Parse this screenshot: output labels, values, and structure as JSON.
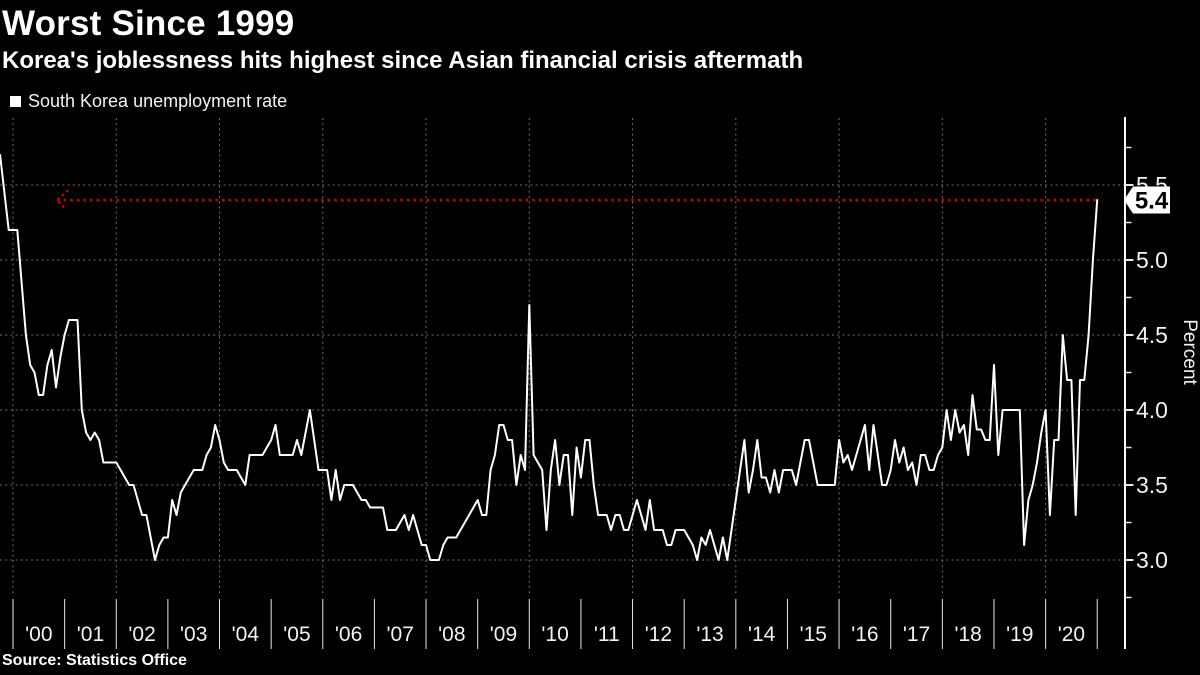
{
  "header": {
    "title": "Worst Since 1999",
    "subtitle": "Korea's joblessness hits highest since Asian financial crisis aftermath"
  },
  "legend": {
    "label": "South Korea unemployment rate",
    "marker_color": "#ffffff"
  },
  "source": "Source: Statistics Office",
  "colors": {
    "background": "#000000",
    "series_line": "#ffffff",
    "grid": "#6f6f6f",
    "axis": "#ffffff",
    "tick": "#e6e6e6",
    "text": "#f2f2f2",
    "reference_red": "#d40000",
    "callout_bg": "#ffffff",
    "callout_text": "#000000"
  },
  "chart_data": {
    "type": "line",
    "title": "Worst Since 1999",
    "subtitle": "Korea's joblessness hits highest since Asian financial crisis aftermath",
    "series_name": "South Korea unemployment rate",
    "ylabel": "Percent",
    "frequency": "monthly",
    "x_start": "1999-10",
    "x_end": "2021-01",
    "x_tick_labels": [
      "'00",
      "'01",
      "'02",
      "'03",
      "'04",
      "'05",
      "'06",
      "'07",
      "'08",
      "'09",
      "'10",
      "'11",
      "'12",
      "'13",
      "'14",
      "'15",
      "'16",
      "'17",
      "'18",
      "'19",
      "'20"
    ],
    "y_ticks_major": [
      5.5,
      5.0,
      4.5,
      4.0,
      3.5,
      3.0
    ],
    "y_ticks_minor": [
      5.75,
      5.25,
      4.75,
      4.25,
      3.75,
      3.25,
      2.75
    ],
    "ylim": [
      2.75,
      5.95
    ],
    "grid": "dashed horizontal at major y ticks, dashed vertical at even years, legend top-left",
    "reference_line": {
      "value": 5.4,
      "label": "5.4",
      "style": "dotted",
      "color": "#d40000",
      "arrow": "left-chevron at start"
    },
    "values": [
      5.7,
      5.45,
      5.2,
      5.2,
      5.2,
      4.85,
      4.5,
      4.3,
      4.25,
      4.1,
      4.1,
      4.3,
      4.4,
      4.15,
      4.35,
      4.5,
      4.6,
      4.6,
      4.6,
      4.0,
      3.85,
      3.8,
      3.85,
      3.8,
      3.65,
      3.65,
      3.65,
      3.65,
      3.6,
      3.55,
      3.5,
      3.5,
      3.4,
      3.3,
      3.3,
      3.15,
      3.0,
      3.1,
      3.15,
      3.15,
      3.4,
      3.3,
      3.45,
      3.5,
      3.55,
      3.6,
      3.6,
      3.6,
      3.7,
      3.75,
      3.9,
      3.8,
      3.65,
      3.6,
      3.6,
      3.6,
      3.55,
      3.5,
      3.7,
      3.7,
      3.7,
      3.7,
      3.75,
      3.8,
      3.9,
      3.7,
      3.7,
      3.7,
      3.7,
      3.8,
      3.7,
      3.85,
      4.0,
      3.8,
      3.6,
      3.6,
      3.6,
      3.4,
      3.6,
      3.4,
      3.5,
      3.5,
      3.5,
      3.45,
      3.4,
      3.4,
      3.35,
      3.35,
      3.35,
      3.35,
      3.2,
      3.2,
      3.2,
      3.25,
      3.3,
      3.2,
      3.3,
      3.2,
      3.1,
      3.1,
      3.0,
      3.0,
      3.0,
      3.1,
      3.15,
      3.15,
      3.15,
      3.2,
      3.25,
      3.3,
      3.35,
      3.4,
      3.3,
      3.3,
      3.6,
      3.7,
      3.9,
      3.9,
      3.8,
      3.8,
      3.5,
      3.7,
      3.6,
      4.7,
      3.7,
      3.65,
      3.6,
      3.2,
      3.6,
      3.8,
      3.5,
      3.7,
      3.7,
      3.3,
      3.75,
      3.55,
      3.8,
      3.8,
      3.5,
      3.3,
      3.3,
      3.3,
      3.2,
      3.3,
      3.3,
      3.2,
      3.2,
      3.3,
      3.4,
      3.3,
      3.2,
      3.4,
      3.2,
      3.2,
      3.2,
      3.1,
      3.1,
      3.2,
      3.2,
      3.2,
      3.15,
      3.1,
      3.0,
      3.15,
      3.1,
      3.2,
      3.1,
      3.0,
      3.15,
      3.0,
      3.2,
      3.4,
      3.6,
      3.8,
      3.45,
      3.6,
      3.8,
      3.55,
      3.55,
      3.45,
      3.6,
      3.45,
      3.6,
      3.6,
      3.6,
      3.5,
      3.65,
      3.8,
      3.8,
      3.65,
      3.5,
      3.5,
      3.5,
      3.5,
      3.5,
      3.8,
      3.65,
      3.7,
      3.6,
      3.7,
      3.8,
      3.9,
      3.6,
      3.9,
      3.7,
      3.5,
      3.5,
      3.6,
      3.8,
      3.65,
      3.75,
      3.6,
      3.65,
      3.5,
      3.7,
      3.7,
      3.6,
      3.6,
      3.7,
      3.75,
      4.0,
      3.8,
      4.0,
      3.85,
      3.9,
      3.7,
      4.1,
      3.87,
      3.87,
      3.8,
      3.8,
      4.3,
      3.7,
      4.0,
      4.0,
      4.0,
      4.0,
      4.0,
      3.1,
      3.4,
      3.5,
      3.65,
      3.85,
      4.0,
      3.3,
      3.8,
      3.8,
      4.5,
      4.2,
      4.2,
      3.3,
      4.2,
      4.2,
      4.5,
      5.0,
      5.4
    ]
  }
}
